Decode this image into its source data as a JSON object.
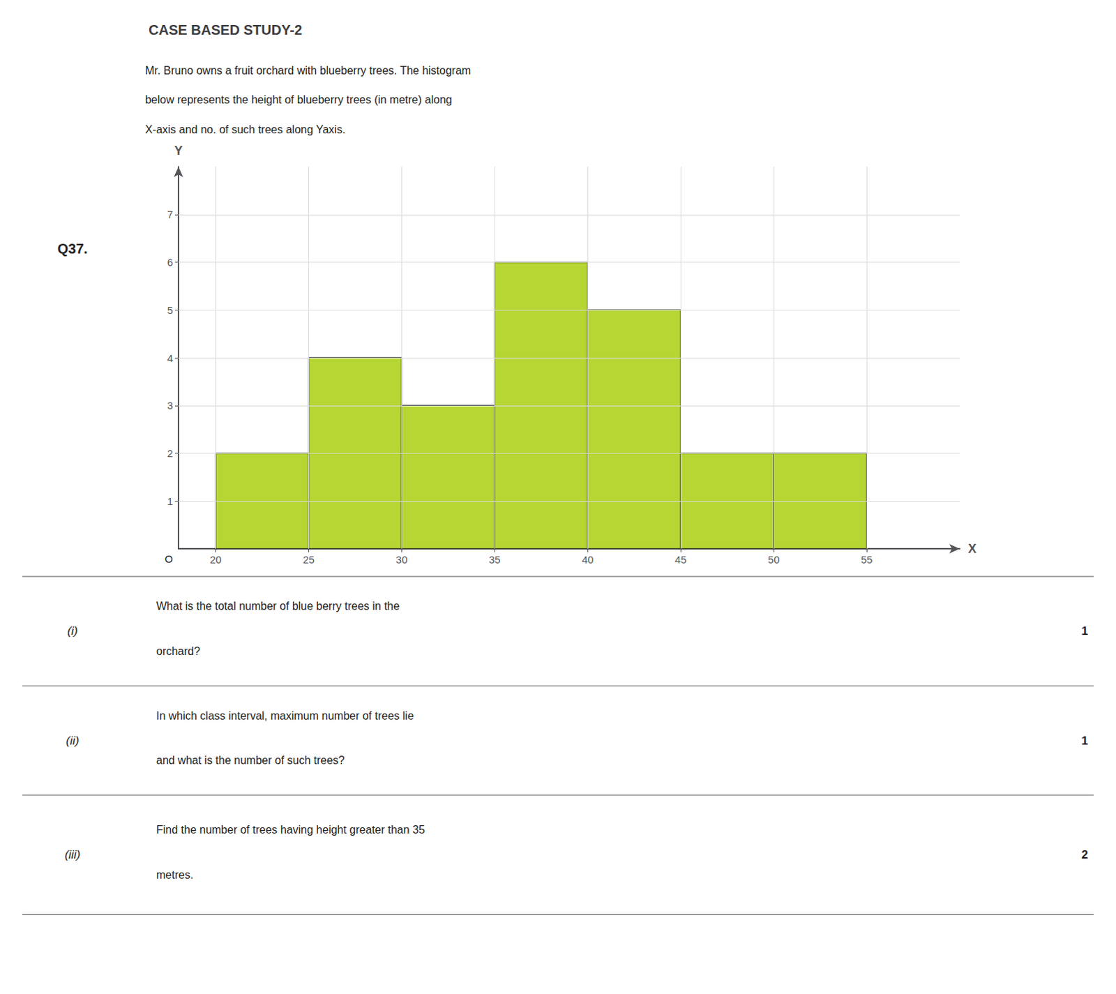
{
  "chart_data": {
    "type": "histogram",
    "title": "CASE BASED STUDY-2",
    "annotations": [
      [
        "Q37."
      ],
      [
        "Mr. Bruno owns a fruit orchard with blueberry trees. The histogram",
        "below represents the height of blueberry trees (in metre) along",
        "X-axis and no. of such trees along Yaxis."
      ],
      [
        "O"
      ],
      [
        "(i)",
        "What is the total number of blue berry trees in the",
        "orchard?",
        "1"
      ],
      [
        "(ii)",
        "In which class interval, maximum number of trees lie",
        "and what is the number of such trees?",
        "1"
      ],
      [
        "(iii)",
        "Find the number of trees having height greater than 35",
        "metres.",
        "2"
      ]
    ],
    "xlabel": "X",
    "ylabel": "Y",
    "bins": [
      20,
      25,
      30,
      35,
      40,
      45,
      50,
      55
    ],
    "values": [
      2,
      4,
      3,
      6,
      5,
      2,
      2
    ],
    "xlim": [
      18,
      60
    ],
    "ylim": [
      0,
      8
    ],
    "xticks": [
      20,
      25,
      30,
      35,
      40,
      45,
      50,
      55
    ],
    "yticks": [
      1,
      2,
      3,
      4,
      5,
      6,
      7
    ],
    "grid": true
  }
}
